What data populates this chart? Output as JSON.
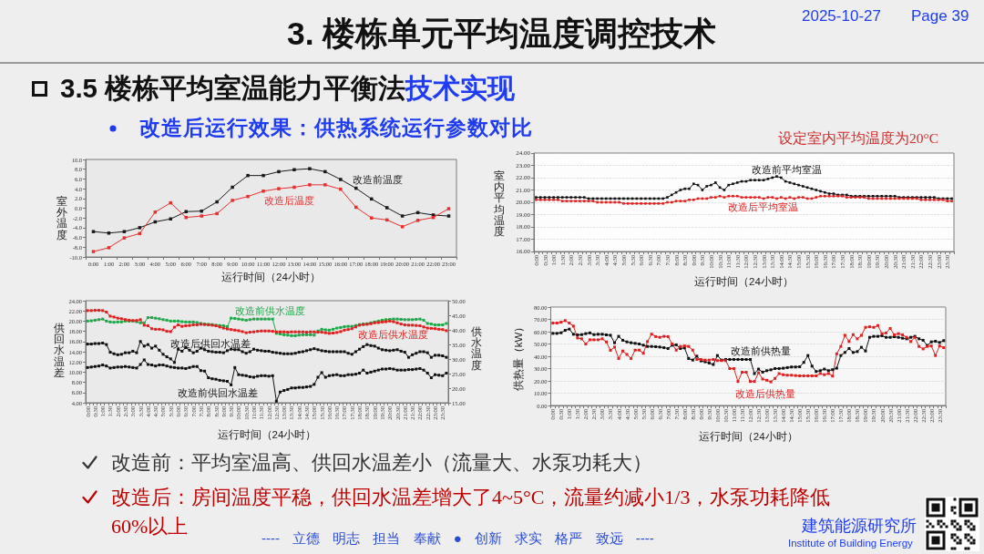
{
  "chart_data": [
    {
      "type": "other",
      "title": "3. 楼栋单元平均温度调控技术",
      "annotations": [
        "2025-10-27",
        "Page 39",
        "3.5 楼栋平均室温能力平衡法",
        "技术实现",
        "改造后运行效果：供热系统运行参数对比"
      ]
    },
    {
      "type": "line",
      "categories": [
        "0:00",
        "1:00",
        "2:00",
        "3:00",
        "4:00",
        "5:00",
        "6:00",
        "7:00",
        "8:00",
        "9:00",
        "10:00",
        "11:00",
        "12:00",
        "13:00",
        "14:00",
        "15:00",
        "16:00",
        "17:00",
        "18:00",
        "19:00",
        "20:00",
        "21:00",
        "22:00",
        "23:00"
      ],
      "xlabel": "运行时间（24小时）",
      "ylabel": "室外温度",
      "ylim": [
        -10,
        10
      ],
      "yticks": [
        {
          "value": -10,
          "label": "-10.0"
        },
        {
          "value": -8,
          "label": "-8.0"
        },
        {
          "value": -6,
          "label": "-6.0"
        },
        {
          "value": -4,
          "label": "-4.0"
        },
        {
          "value": -2,
          "label": "-2.0"
        },
        {
          "value": 0,
          "label": "0.0"
        },
        {
          "value": 2,
          "label": "2.0"
        },
        {
          "value": 4,
          "label": "4.0"
        },
        {
          "value": 6,
          "label": "6.0"
        },
        {
          "value": 8,
          "label": "8.0"
        },
        {
          "value": 10,
          "label": "10.0"
        }
      ],
      "marker": "square",
      "series": [
        {
          "name": "改造前温度",
          "color": "#1a1a1a",
          "values": [
            -4.8,
            -5.1,
            -4.8,
            -4.0,
            -2.8,
            -2.2,
            -0.7,
            -0.6,
            1.3,
            4.3,
            6.7,
            6.7,
            7.5,
            7.9,
            8.1,
            7.5,
            5.9,
            4.1,
            1.9,
            0.1,
            -1.6,
            -0.9,
            -1.4,
            -1.6
          ]
        },
        {
          "name": "改造后温度",
          "color": "#e53030",
          "values": [
            -8.9,
            -8.1,
            -6.1,
            -5.2,
            -0.8,
            1.1,
            -1.9,
            -1.6,
            -1.1,
            1.6,
            2.4,
            3.5,
            4.0,
            4.3,
            4.8,
            4.8,
            3.9,
            0.2,
            -2.0,
            -2.4,
            -3.8,
            -2.5,
            -1.9,
            -0.1
          ]
        }
      ]
    },
    {
      "type": "line",
      "categories": [
        "0:00",
        null,
        "0:30",
        null,
        "1:00",
        null,
        "1:30",
        null,
        "2:00",
        null,
        "2:30",
        null,
        "3:00",
        null,
        "3:30",
        null,
        "4:00",
        null,
        "4:30",
        null,
        "5:00",
        null,
        "5:30",
        null,
        "6:00",
        null,
        "6:30",
        null,
        "7:00",
        null,
        "7:30",
        null,
        "8:00",
        null,
        "8:30",
        null,
        "9:00",
        null,
        "9:30",
        null,
        "10:00",
        null,
        "10:30",
        null,
        "11:00",
        null,
        "11:30",
        null,
        "12:00",
        null,
        "12:30",
        null,
        "13:00",
        null,
        "13:30",
        null,
        "14:00",
        null,
        "14:30",
        null,
        "15:00",
        null,
        "15:30",
        null,
        "16:00",
        null,
        "16:30",
        null,
        "17:00",
        null,
        "17:30",
        null,
        "18:00",
        null,
        "18:30",
        null,
        "19:00",
        null,
        "19:30",
        null,
        "20:00",
        null,
        "20:30",
        null,
        "21:00",
        null,
        "21:30",
        null,
        "22:00",
        null,
        "22:30",
        null,
        "23:00",
        null,
        "23:30",
        null
      ],
      "xlabel": "运行时间（24小时）",
      "ylabel": "室内平均温度",
      "ylim": [
        16,
        24
      ],
      "yticks": [
        {
          "value": 16,
          "label": "16.00"
        },
        {
          "value": 17,
          "label": "17.00"
        },
        {
          "value": 18,
          "label": "18.00"
        },
        {
          "value": 19,
          "label": "19.00"
        },
        {
          "value": 20,
          "label": "20.00"
        },
        {
          "value": 21,
          "label": "21.00"
        },
        {
          "value": 22,
          "label": "22.00"
        },
        {
          "value": 23,
          "label": "23.00"
        },
        {
          "value": 24,
          "label": "24.00"
        }
      ],
      "grid": "y",
      "marker": "square",
      "annotations": [
        "设定室内平均温度为20°C"
      ],
      "series": [
        {
          "name": "改造前平均室温",
          "color": "#111111",
          "values": [
            20.4,
            20.4,
            20.4,
            20.4,
            20.4,
            20.4,
            20.4,
            20.4,
            20.4,
            20.4,
            20.4,
            20.4,
            20.3,
            20.3,
            20.3,
            20.3,
            20.3,
            20.3,
            20.3,
            20.3,
            20.3,
            20.3,
            20.3,
            20.3,
            20.3,
            20.3,
            20.3,
            20.3,
            20.3,
            20.3,
            20.4,
            20.6,
            20.8,
            21.0,
            21.1,
            21.1,
            21.5,
            21.4,
            21.0,
            21.3,
            21.4,
            21.6,
            21.2,
            21.0,
            21.4,
            21.5,
            21.6,
            21.7,
            21.7,
            21.8,
            21.8,
            21.8,
            21.8,
            21.9,
            22.0,
            22.1,
            22.0,
            21.7,
            21.6,
            21.5,
            21.4,
            21.3,
            21.2,
            21.1,
            21.0,
            20.9,
            20.8,
            20.7,
            20.7,
            20.6,
            20.6,
            20.6,
            20.5,
            20.5,
            20.5,
            20.5,
            20.5,
            20.5,
            20.5,
            20.5,
            20.5,
            20.5,
            20.5,
            20.4,
            20.4,
            20.4,
            20.4,
            20.4,
            20.4,
            20.4,
            20.4,
            20.4,
            20.3,
            20.3,
            20.3,
            20.3
          ]
        },
        {
          "name": "改造后平均室温",
          "color": "#e02020",
          "values": [
            20.2,
            20.2,
            20.2,
            20.2,
            20.2,
            20.2,
            20.1,
            20.1,
            20.1,
            20.1,
            20.1,
            20.1,
            20.1,
            20.1,
            20.0,
            20.0,
            20.0,
            20.0,
            20.0,
            20.0,
            19.9,
            19.9,
            19.9,
            19.9,
            19.9,
            19.9,
            19.9,
            19.9,
            19.9,
            19.9,
            20.0,
            20.0,
            20.1,
            20.1,
            20.1,
            20.2,
            20.2,
            20.3,
            20.3,
            20.3,
            20.4,
            20.4,
            20.5,
            20.4,
            20.5,
            20.5,
            20.5,
            20.4,
            20.4,
            20.4,
            20.4,
            20.4,
            20.3,
            20.4,
            20.4,
            20.3,
            20.4,
            20.3,
            20.4,
            20.3,
            20.4,
            20.4,
            20.3,
            20.3,
            20.4,
            20.5,
            20.5,
            20.5,
            20.5,
            20.5,
            20.5,
            20.4,
            20.4,
            20.4,
            20.4,
            20.4,
            20.3,
            20.3,
            20.3,
            20.3,
            20.3,
            20.3,
            20.3,
            20.3,
            20.3,
            20.3,
            20.3,
            20.3,
            20.2,
            20.2,
            20.2,
            20.2,
            20.2,
            20.2,
            20.1,
            20.1
          ]
        }
      ]
    },
    {
      "type": "line",
      "categories": [
        "0:00",
        null,
        "0:30",
        null,
        "1:00",
        null,
        "1:30",
        null,
        "2:00",
        null,
        "2:30",
        null,
        "3:00",
        null,
        "3:30",
        null,
        "4:00",
        null,
        "4:30",
        null,
        "5:00",
        null,
        "5:30",
        null,
        "6:00",
        null,
        "6:30",
        null,
        "7:00",
        null,
        "7:30",
        null,
        "8:00",
        null,
        "8:30",
        null,
        "9:00",
        null,
        "9:30",
        null,
        "10:00",
        null,
        "10:30",
        null,
        "11:00",
        null,
        "11:30",
        null,
        "12:00",
        null,
        "12:30",
        null,
        "13:00",
        null,
        "13:30",
        null,
        "14:00",
        null,
        "14:30",
        null,
        "15:00",
        null,
        "15:30",
        null,
        "16:00",
        null,
        "16:30",
        null,
        "17:00",
        null,
        "17:30",
        null,
        "18:00",
        null,
        "18:30",
        null,
        "19:00",
        null,
        "19:30",
        null,
        "20:00",
        null,
        "20:30",
        null,
        "21:00",
        null,
        "21:30",
        null,
        "22:00",
        null,
        "22:30",
        null,
        "23:00",
        null,
        "23:30",
        null
      ],
      "xlabel": "运行时间（24小时）",
      "ylabel": "供回水温差",
      "y2label": "供水温度",
      "ylim": [
        4,
        24
      ],
      "yticks": [
        {
          "value": 4,
          "label": "4.00"
        },
        {
          "value": 6,
          "label": "6.00"
        },
        {
          "value": 8,
          "label": "8.00"
        },
        {
          "value": 10,
          "label": "10.00"
        },
        {
          "value": 12,
          "label": "12.00"
        },
        {
          "value": 14,
          "label": "14.00"
        },
        {
          "value": 16,
          "label": "16.00"
        },
        {
          "value": 18,
          "label": "18.00"
        },
        {
          "value": 20,
          "label": "20.00"
        },
        {
          "value": 22,
          "label": "22.00"
        },
        {
          "value": 24,
          "label": "24.00"
        }
      ],
      "y2lim": [
        15,
        50
      ],
      "y2ticks": [
        {
          "value": 15,
          "label": "15.00"
        },
        {
          "value": 20,
          "label": "20.00"
        },
        {
          "value": 25,
          "label": "25.00"
        },
        {
          "value": 30,
          "label": "30.00"
        },
        {
          "value": 35,
          "label": "35.00"
        },
        {
          "value": 40,
          "label": "40.00"
        },
        {
          "value": 45,
          "label": "45.00"
        },
        {
          "value": 50,
          "label": "50.00"
        }
      ],
      "marker": "square",
      "series": [
        {
          "name": "改造前供水温度",
          "color": "#1fa84a",
          "axis": "y2",
          "values": [
            43.0,
            43.1,
            43.3,
            43.5,
            43.7,
            43.0,
            42.7,
            42.6,
            42.7,
            42.7,
            43.0,
            43.0,
            43.0,
            42.8,
            42.4,
            42.4,
            44.2,
            44.2,
            44.0,
            43.8,
            43.5,
            43.3,
            43.0,
            43.0,
            43.0,
            42.8,
            42.7,
            42.7,
            42.7,
            42.5,
            42.2,
            42.0,
            41.9,
            41.8,
            41.6,
            41.5,
            41.4,
            41.1,
            44.0,
            43.9,
            43.7,
            43.5,
            43.3,
            43.5,
            43.7,
            43.7,
            43.7,
            43.7,
            43.7,
            43.7,
            38.8,
            38.6,
            38.3,
            38.2,
            38.0,
            38.0,
            38.2,
            38.3,
            38.3,
            38.3,
            38.2,
            39.6,
            40.2,
            40.0,
            39.9,
            40.2,
            40.6,
            40.8,
            41.1,
            41.2,
            41.2,
            41.5,
            41.8,
            42.0,
            42.1,
            42.4,
            42.7,
            43.0,
            43.3,
            43.5,
            43.6,
            43.7,
            43.7,
            43.6,
            43.5,
            43.5,
            43.5,
            43.6,
            43.7,
            43.3,
            42.2,
            42.0,
            41.7,
            41.7,
            41.7,
            42.2
          ]
        },
        {
          "name": "改造后供水温度",
          "color": "#e02020",
          "axis": "y2",
          "values": [
            46.6,
            46.6,
            46.7,
            46.7,
            46.6,
            46.1,
            44.7,
            44.4,
            44.0,
            43.8,
            43.5,
            43.3,
            43.2,
            43.2,
            43.5,
            41.6,
            41.4,
            40.4,
            40.2,
            40.2,
            40.0,
            39.5,
            39.4,
            40.9,
            41.7,
            41.2,
            41.4,
            41.5,
            41.7,
            41.7,
            41.9,
            41.8,
            41.7,
            41.6,
            41.4,
            41.0,
            40.6,
            40.3,
            40.1,
            39.9,
            39.7,
            39.4,
            39.0,
            39.2,
            39.3,
            39.5,
            39.6,
            39.6,
            39.6,
            39.5,
            39.3,
            39.3,
            39.3,
            39.2,
            39.3,
            39.3,
            39.3,
            39.3,
            39.2,
            39.3,
            39.3,
            39.2,
            39.2,
            39.0,
            38.8,
            38.9,
            39.1,
            39.4,
            39.9,
            40.1,
            40.4,
            41.0,
            41.6,
            41.8,
            41.9,
            42.1,
            42.4,
            42.5,
            42.7,
            42.8,
            43.0,
            42.8,
            42.4,
            42.0,
            41.7,
            41.6,
            41.6,
            41.5,
            41.4,
            41.0,
            40.6,
            40.5,
            40.4,
            40.2,
            40.1,
            39.7
          ]
        },
        {
          "name": "改造后供回水温差",
          "color": "#111111",
          "values": [
            15.5,
            15.5,
            15.6,
            15.6,
            15.7,
            15.4,
            13.9,
            13.6,
            13.4,
            13.5,
            13.8,
            13.8,
            14.1,
            13.8,
            16.0,
            15.1,
            15.4,
            14.7,
            15.1,
            14.3,
            13.5,
            13.0,
            12.6,
            11.9,
            14.5,
            14.1,
            14.8,
            14.3,
            13.8,
            14.1,
            14.7,
            14.4,
            14.1,
            14.0,
            13.9,
            13.9,
            13.8,
            14.2,
            14.5,
            14.4,
            14.4,
            14.0,
            13.7,
            14.0,
            14.5,
            14.3,
            14.2,
            14.1,
            14.1,
            13.9,
            13.8,
            13.7,
            13.6,
            13.6,
            13.6,
            13.7,
            13.9,
            14.0,
            14.2,
            14.4,
            14.6,
            14.4,
            14.2,
            14.1,
            14.0,
            14.0,
            14.0,
            14.0,
            14.0,
            13.7,
            13.5,
            14.0,
            14.5,
            15.0,
            15.4,
            15.2,
            15.1,
            14.7,
            14.4,
            14.3,
            14.2,
            14.3,
            14.4,
            14.1,
            13.9,
            12.9,
            13.4,
            13.7,
            14.0,
            14.0,
            13.8,
            12.9,
            13.3,
            13.3,
            13.2,
            12.9
          ]
        },
        {
          "name": "改造前供回水温差",
          "color": "#111111",
          "values": [
            10.9,
            11.0,
            11.1,
            11.2,
            11.4,
            11.2,
            10.8,
            10.9,
            11.0,
            11.0,
            11.1,
            11.0,
            10.9,
            10.8,
            11.5,
            12.4,
            11.5,
            11.4,
            11.2,
            11.4,
            11.4,
            11.2,
            11.0,
            10.9,
            10.8,
            10.8,
            10.7,
            10.9,
            11.1,
            11.1,
            10.3,
            10.2,
            8.9,
            8.7,
            8.6,
            8.4,
            8.3,
            8.2,
            7.5,
            10.9,
            9.5,
            9.4,
            9.3,
            9.1,
            9.0,
            9.2,
            9.3,
            9.3,
            9.2,
            9.3,
            4.3,
            6.1,
            6.4,
            6.6,
            6.9,
            6.9,
            7.0,
            7.0,
            7.1,
            7.2,
            7.6,
            9.0,
            9.9,
            9.0,
            9.3,
            9.4,
            9.5,
            9.3,
            9.3,
            9.5,
            9.5,
            9.6,
            9.8,
            10.4,
            9.8,
            10.0,
            10.2,
            10.4,
            10.6,
            10.6,
            10.7,
            10.6,
            10.4,
            10.4,
            10.4,
            10.5,
            10.5,
            10.6,
            10.7,
            10.4,
            9.8,
            8.9,
            9.5,
            9.4,
            9.3,
            9.8
          ]
        }
      ]
    },
    {
      "type": "line",
      "categories": [
        "0:00",
        null,
        "0:30",
        null,
        "1:00",
        null,
        "1:30",
        null,
        "2:00",
        null,
        "2:30",
        null,
        "3:00",
        null,
        "3:30",
        null,
        "4:00",
        null,
        "4:30",
        null,
        "5:00",
        null,
        "5:30",
        null,
        "6:00",
        null,
        "6:30",
        null,
        "7:00",
        null,
        "7:30",
        null,
        "8:00",
        null,
        "8:30",
        null,
        "9:00",
        null,
        "9:30",
        null,
        "10:00",
        null,
        "10:30",
        null,
        "11:00",
        null,
        "11:30",
        null,
        "12:00",
        null,
        "12:30",
        null,
        "13:00",
        null,
        "13:30",
        null,
        "14:00",
        null,
        "14:30",
        null,
        "15:00",
        null,
        "15:30",
        null,
        "16:00",
        null,
        "16:30",
        null,
        "17:00",
        null,
        "17:30",
        null,
        "18:00",
        null,
        "18:30",
        null,
        "19:00",
        null,
        "19:30",
        null,
        "20:00",
        null,
        "20:30",
        null,
        "21:00",
        null,
        "21:30",
        null,
        "22:00",
        null,
        "22:30",
        null,
        "23:00",
        null,
        "23:30",
        null
      ],
      "xlabel": "运行时间（24小时）",
      "ylabel": "供热量（kW）",
      "ylim": [
        0,
        80
      ],
      "yticks": [
        {
          "value": 0,
          "label": "0.00"
        },
        {
          "value": 10,
          "label": "10.00"
        },
        {
          "value": 20,
          "label": "20.00"
        },
        {
          "value": 30,
          "label": "30.00"
        },
        {
          "value": 40,
          "label": "40.00"
        },
        {
          "value": 50,
          "label": "50.00"
        },
        {
          "value": 60,
          "label": "60.00"
        },
        {
          "value": 70,
          "label": "70.00"
        },
        {
          "value": 80,
          "label": "80.00"
        }
      ],
      "grid": "y",
      "marker": "square",
      "series": [
        {
          "name": "改造前供热量",
          "color": "#111111",
          "values": [
            58.6,
            58.6,
            59.1,
            61.1,
            62.1,
            57.9,
            57.4,
            57.6,
            58.4,
            59.0,
            57.6,
            57.9,
            57.9,
            57.4,
            57.1,
            51.0,
            56.2,
            53.0,
            51.7,
            51.0,
            50.5,
            50.0,
            49.0,
            48.0,
            48.0,
            47.8,
            47.5,
            47.0,
            46.3,
            49.0,
            49.3,
            46.3,
            46.8,
            38.2,
            36.9,
            40.1,
            36.2,
            35.5,
            34.5,
            33.3,
            40.6,
            36.9,
            37.4,
            37.4,
            37.4,
            37.4,
            37.4,
            37.4,
            37.4,
            25.9,
            29.6,
            27.1,
            28.3,
            29.0,
            30.0,
            30.0,
            30.3,
            30.8,
            31.3,
            31.3,
            31.5,
            35.0,
            40.6,
            32.0,
            27.6,
            28.3,
            29.6,
            28.3,
            29.1,
            30.3,
            40.6,
            43.1,
            46.3,
            43.1,
            43.8,
            47.3,
            44.3,
            55.4,
            56.2,
            56.2,
            56.7,
            55.4,
            55.4,
            55.9,
            55.4,
            54.7,
            54.2,
            55.4,
            56.2,
            54.2,
            53.0,
            48.8,
            51.7,
            52.2,
            51.2,
            52.7
          ]
        },
        {
          "name": "改造后供热量",
          "color": "#e02020",
          "values": [
            67.0,
            67.0,
            67.7,
            69.0,
            67.0,
            64.5,
            54.9,
            54.2,
            50.0,
            53.4,
            53.4,
            53.4,
            54.2,
            51.7,
            44.8,
            47.5,
            38.2,
            44.3,
            41.5,
            38.2,
            45.0,
            45.0,
            42.4,
            52.0,
            58.0,
            56.0,
            55.4,
            56.2,
            56.0,
            50.0,
            45.0,
            48.0,
            48.4,
            48.0,
            45.0,
            37.4,
            37.4,
            36.9,
            36.9,
            37.4,
            36.5,
            36.5,
            36.5,
            30.0,
            30.0,
            19.5,
            27.0,
            27.0,
            19.5,
            19.5,
            26.6,
            21.5,
            20.5,
            19.2,
            22.0,
            25.9,
            25.0,
            24.6,
            24.6,
            24.3,
            24.1,
            24.1,
            24.1,
            24.1,
            24.1,
            26.0,
            25.0,
            26.0,
            23.9,
            42.0,
            48.0,
            57.1,
            52.0,
            57.6,
            54.2,
            57.0,
            63.5,
            64.0,
            63.5,
            65.0,
            58.4,
            59.0,
            62.6,
            57.4,
            58.4,
            57.4,
            55.4,
            52.0,
            55.4,
            48.0,
            46.0,
            48.0,
            48.4,
            40.6,
            48.4,
            47.0
          ]
        }
      ]
    },
    {
      "type": "other",
      "annotations": [
        "改造前：平均室温高、供回水温差小（流量大、水泵功耗大）",
        "改造后：房间温度平稳，供回水温差增大了4~5°C，流量约减小1/3，水泵功耗降低60%以上",
        "---- 立德 明志 担当 奉献 ● 创新 求实 格严 致远 ----",
        "建筑能源研究所",
        "Institute of Building Energy"
      ]
    }
  ]
}
